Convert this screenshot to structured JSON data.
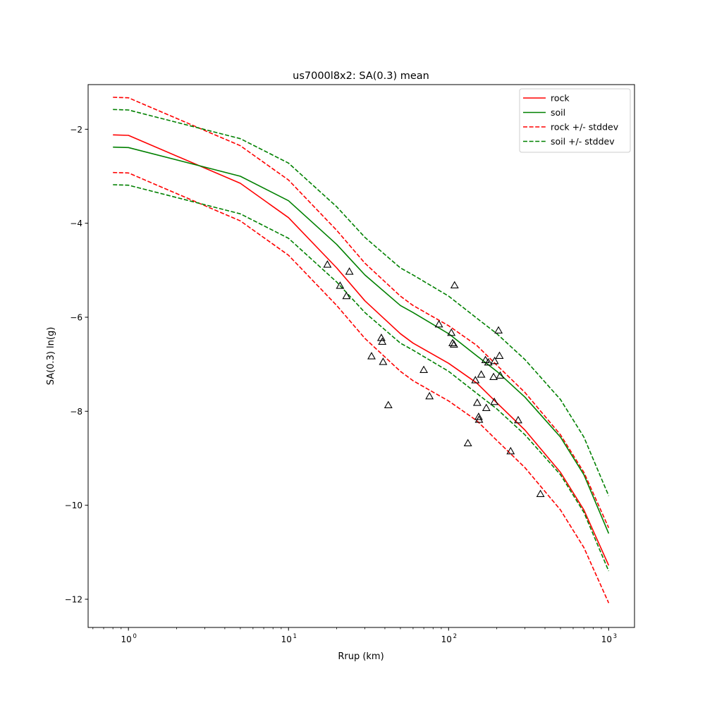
{
  "chart_data": {
    "type": "line",
    "title": "us7000l8x2: SA(0.3) mean",
    "xlabel": "Rrup (km)",
    "ylabel": "SA(0.3) ln(g)",
    "xscale": "log",
    "xlim": [
      0.56,
      1450
    ],
    "ylim": [
      -12.6,
      -1.05
    ],
    "x_ticks": [
      {
        "value": 1,
        "base": "10",
        "exp": "0"
      },
      {
        "value": 10,
        "base": "10",
        "exp": "1"
      },
      {
        "value": 100,
        "base": "10",
        "exp": "2"
      },
      {
        "value": 1000,
        "base": "10",
        "exp": "3"
      }
    ],
    "y_ticks": [
      {
        "value": -2,
        "label": "−2"
      },
      {
        "value": -4,
        "label": "−4"
      },
      {
        "value": -6,
        "label": "−6"
      },
      {
        "value": -8,
        "label": "−8"
      },
      {
        "value": -10,
        "label": "−10"
      },
      {
        "value": -12,
        "label": "−12"
      }
    ],
    "legend_position": "top-right",
    "x": [
      0.8,
      1.0,
      5.0,
      10.0,
      20.0,
      30.0,
      50.0,
      60.0,
      100.0,
      150.0,
      200.0,
      300.0,
      500.0,
      700.0,
      1000.0
    ],
    "series": [
      {
        "name": "rock",
        "legend": "rock",
        "color": "#ff0000",
        "dashed": false,
        "values": [
          -2.12,
          -2.13,
          -3.15,
          -3.88,
          -4.95,
          -5.65,
          -6.35,
          -6.55,
          -6.98,
          -7.4,
          -7.82,
          -8.4,
          -9.3,
          -10.1,
          -11.28
        ]
      },
      {
        "name": "soil",
        "legend": "soil",
        "color": "#008000",
        "dashed": false,
        "values": [
          -2.38,
          -2.39,
          -3.0,
          -3.52,
          -4.45,
          -5.1,
          -5.75,
          -5.9,
          -6.35,
          -6.82,
          -7.15,
          -7.7,
          -8.55,
          -9.35,
          -10.6
        ]
      },
      {
        "name": "rock +stddev",
        "legend": "rock +/- stddev",
        "color": "#ff0000",
        "dashed": true,
        "values": [
          -1.32,
          -1.33,
          -2.35,
          -3.08,
          -4.15,
          -4.85,
          -5.55,
          -5.75,
          -6.18,
          -6.6,
          -7.02,
          -7.6,
          -8.5,
          -9.3,
          -10.48
        ]
      },
      {
        "name": "rock -stddev",
        "legend": "",
        "color": "#ff0000",
        "dashed": true,
        "values": [
          -2.92,
          -2.93,
          -3.95,
          -4.68,
          -5.75,
          -6.45,
          -7.15,
          -7.35,
          -7.78,
          -8.2,
          -8.62,
          -9.2,
          -10.1,
          -10.9,
          -12.08
        ]
      },
      {
        "name": "soil +stddev",
        "legend": "soil +/- stddev",
        "color": "#008000",
        "dashed": true,
        "values": [
          -1.58,
          -1.59,
          -2.2,
          -2.72,
          -3.65,
          -4.3,
          -4.95,
          -5.1,
          -5.55,
          -6.02,
          -6.35,
          -6.9,
          -7.75,
          -8.55,
          -9.8
        ]
      },
      {
        "name": "soil -stddev",
        "legend": "",
        "color": "#008000",
        "dashed": true,
        "values": [
          -3.18,
          -3.19,
          -3.8,
          -4.32,
          -5.25,
          -5.9,
          -6.55,
          -6.7,
          -7.15,
          -7.62,
          -7.95,
          -8.5,
          -9.35,
          -10.15,
          -11.4
        ]
      }
    ],
    "observations": {
      "marker": "triangle",
      "points": [
        [
          17.5,
          -4.88
        ],
        [
          21,
          -5.33
        ],
        [
          23,
          -5.55
        ],
        [
          24,
          -5.03
        ],
        [
          33,
          -6.83
        ],
        [
          38,
          -6.44
        ],
        [
          38.5,
          -6.52
        ],
        [
          39,
          -6.95
        ],
        [
          42,
          -7.87
        ],
        [
          70,
          -7.12
        ],
        [
          76,
          -7.68
        ],
        [
          87,
          -6.15
        ],
        [
          104,
          -6.33
        ],
        [
          106,
          -6.55
        ],
        [
          108,
          -6.58
        ],
        [
          109,
          -5.32
        ],
        [
          132,
          -8.68
        ],
        [
          147,
          -7.34
        ],
        [
          151,
          -7.82
        ],
        [
          154,
          -8.12
        ],
        [
          155,
          -8.18
        ],
        [
          160,
          -7.22
        ],
        [
          170,
          -6.91
        ],
        [
          172,
          -7.93
        ],
        [
          177,
          -6.96
        ],
        [
          191,
          -7.27
        ],
        [
          193,
          -7.8
        ],
        [
          194,
          -6.93
        ],
        [
          205,
          -6.28
        ],
        [
          208,
          -6.82
        ],
        [
          210,
          -7.24
        ],
        [
          244,
          -8.85
        ],
        [
          272,
          -8.19
        ],
        [
          375,
          -9.76
        ]
      ]
    }
  }
}
